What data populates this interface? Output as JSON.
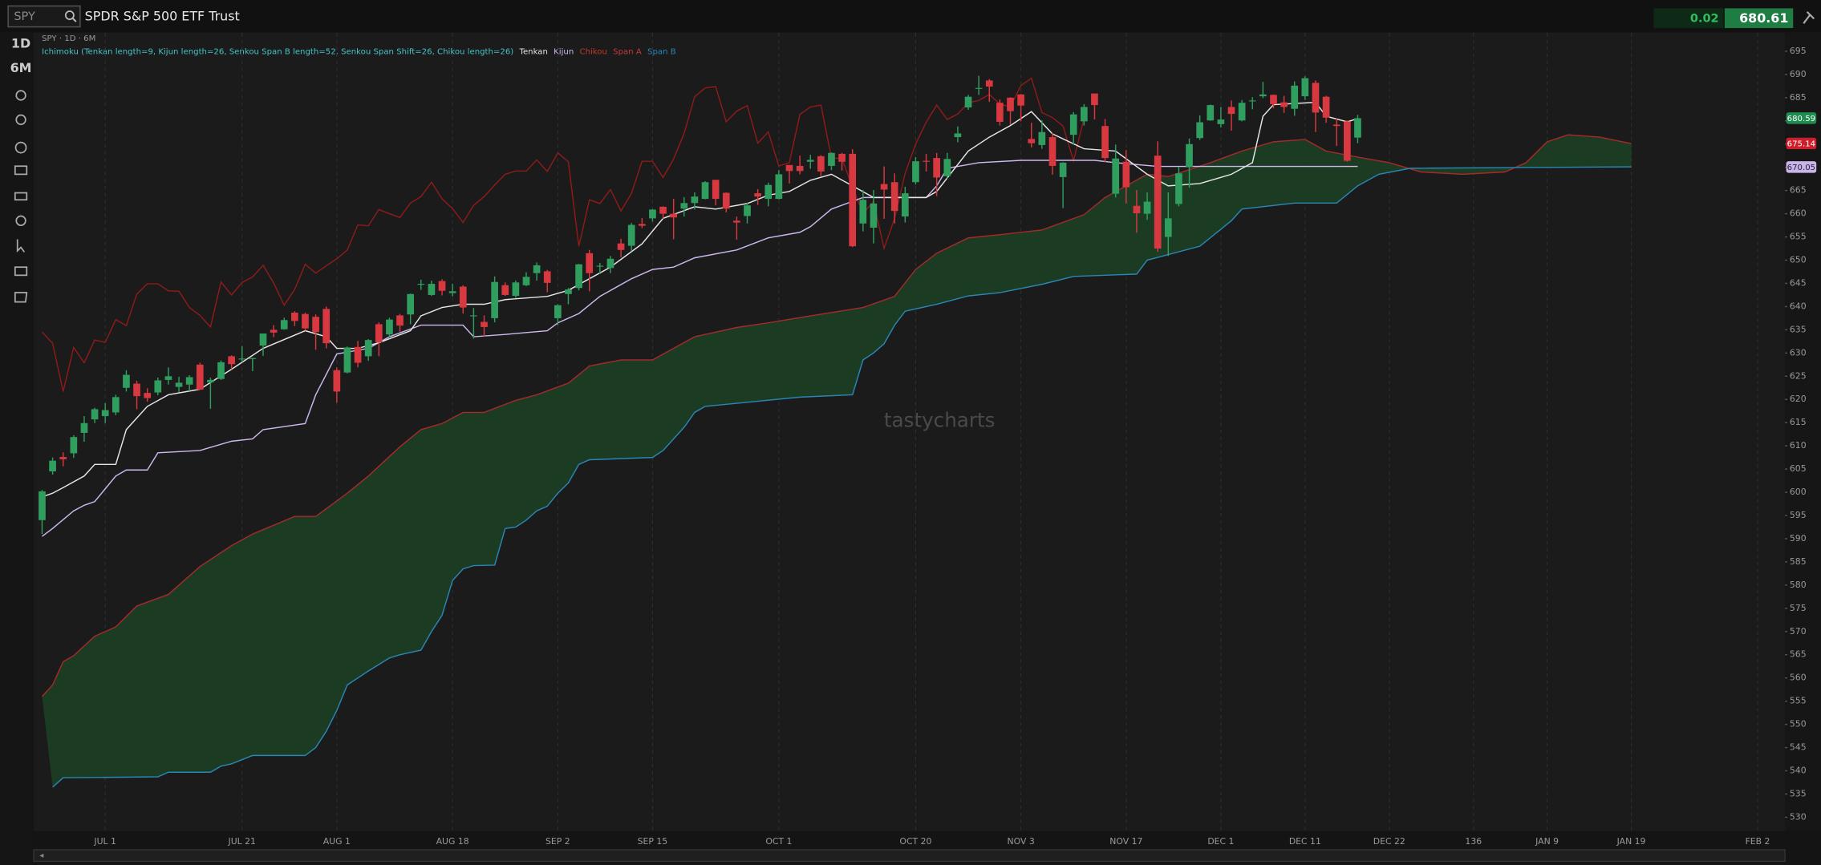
{
  "header": {
    "symbol": "SPY",
    "name": "SPDR S&P 500 ETF Trust",
    "change": 0.02,
    "last": 680.61
  },
  "toolbar": {
    "interval": "1D",
    "range": "6M"
  },
  "chart_data": {
    "type": "candlestick",
    "title": "SPY · 1D · 6M",
    "study": "Ichimoku (Tenkan length=9, Kijun length=26, Senkou Span B length=52, Senkou Span Shift=26, Chikou length=26)",
    "watermark": "tastycharts",
    "up_color": "#2f9e5f",
    "down_color": "#d8383f",
    "cloud_color": "#1b4224",
    "open": [
      594.0,
      604.5,
      607.6,
      608.4,
      612.8,
      615.7,
      616.4,
      617.2,
      622.5,
      623.4,
      621.4,
      621.5,
      624.2,
      622.7,
      623.2,
      627.5,
      623.7,
      624.4,
      629.3,
      628.8,
      628.7,
      631.6,
      635.0,
      635.1,
      638.7,
      638.4,
      637.8,
      639.5,
      626.3,
      625.8,
      631.3,
      629.3,
      636.2,
      634.0,
      638.1,
      638.3,
      644.7,
      642.5,
      645.5,
      642.9,
      644.3,
      637.9,
      636.7,
      637.5,
      644.6,
      642.3,
      644.6,
      647.2,
      647.6,
      637.5,
      642.7,
      644.0,
      651.5,
      648.6,
      648.3,
      653.6,
      653.1,
      657.8,
      659.0,
      661.5,
      660.0,
      661.1,
      662.3,
      663.2,
      667.3,
      664.5,
      658.5,
      659.5,
      664.4,
      663.2,
      663.2,
      670.5,
      670.3,
      671.2,
      672.4,
      670.3,
      672.9,
      672.9,
      657.9,
      657.0,
      666.4,
      666.8,
      659.4,
      666.8,
      671.4,
      672.0,
      668.1,
      676.5,
      682.9,
      687.0,
      688.7,
      683.9,
      685.0,
      685.7,
      676.1,
      674.8,
      676.5,
      667.9,
      677.0,
      679.9,
      685.9,
      678.9,
      664.3,
      671.2,
      661.7,
      660.0,
      672.5,
      655.0,
      662.1,
      670.0,
      676.3,
      680.1,
      679.3,
      683.0,
      680.1,
      684.4,
      685.3,
      685.6,
      684.0,
      682.6,
      685.3,
      688.2,
      685.2,
      679.2,
      679.9,
      676.4
    ],
    "high": [
      600.5,
      607.5,
      608.6,
      612.3,
      616.4,
      618.2,
      619.2,
      621.0,
      626.3,
      624.0,
      622.4,
      624.7,
      626.9,
      624.9,
      625.2,
      627.9,
      624.7,
      628.4,
      629.5,
      631.5,
      629.0,
      634.2,
      636.0,
      637.6,
      639.0,
      638.7,
      638.3,
      640.0,
      626.9,
      631.4,
      632.6,
      633.0,
      636.6,
      637.6,
      638.4,
      642.8,
      645.8,
      645.6,
      645.9,
      644.9,
      644.6,
      639.7,
      638.1,
      646.5,
      645.2,
      645.6,
      647.4,
      649.5,
      647.9,
      640.5,
      644.0,
      649.2,
      652.2,
      649.4,
      650.9,
      654.6,
      658.0,
      659.1,
      661.0,
      661.6,
      663.2,
      663.6,
      664.6,
      667.0,
      667.3,
      664.6,
      659.4,
      662.4,
      665.3,
      666.7,
      669.4,
      670.5,
      672.5,
      672.7,
      672.6,
      673.2,
      673.1,
      673.9,
      665.1,
      665.1,
      670.2,
      668.7,
      665.8,
      672.2,
      672.9,
      673.1,
      673.1,
      678.8,
      685.6,
      689.7,
      689.0,
      684.6,
      685.1,
      685.8,
      679.6,
      680.1,
      677.4,
      671.1,
      681.9,
      683.6,
      685.9,
      680.4,
      674.9,
      673.7,
      665.1,
      664.6,
      675.6,
      664.6,
      670.1,
      676.2,
      681.2,
      683.5,
      683.0,
      684.4,
      684.5,
      685.1,
      688.4,
      685.7,
      685.4,
      688.5,
      689.6,
      688.7,
      685.4,
      680.5,
      680.1,
      681.3
    ],
    "low": [
      591.0,
      603.8,
      605.6,
      607.4,
      610.9,
      614.9,
      614.9,
      616.6,
      621.7,
      617.9,
      619.5,
      620.9,
      623.2,
      621.5,
      621.8,
      622.0,
      618.0,
      624.2,
      626.5,
      628.0,
      626.1,
      629.4,
      633.4,
      635.0,
      635.8,
      634.8,
      630.7,
      631.0,
      619.3,
      625.6,
      626.9,
      628.3,
      629.3,
      633.4,
      634.6,
      636.2,
      643.6,
      642.3,
      642.4,
      642.2,
      638.5,
      633.1,
      633.6,
      636.6,
      642.3,
      641.9,
      644.4,
      645.6,
      643.1,
      636.0,
      640.5,
      643.5,
      643.3,
      647.0,
      647.2,
      650.6,
      651.9,
      656.9,
      658.3,
      658.9,
      654.5,
      659.4,
      660.9,
      663.1,
      661.8,
      660.3,
      654.4,
      657.9,
      661.9,
      661.6,
      663.1,
      666.5,
      668.5,
      669.7,
      668.1,
      669.4,
      669.3,
      652.8,
      656.2,
      653.6,
      658.9,
      657.9,
      658.1,
      666.3,
      669.1,
      663.8,
      667.6,
      675.4,
      682.4,
      685.6,
      684.1,
      679.0,
      679.2,
      679.9,
      674.3,
      674.0,
      668.4,
      661.2,
      674.8,
      679.0,
      680.3,
      671.1,
      663.5,
      662.2,
      655.9,
      658.7,
      651.8,
      650.9,
      661.6,
      665.6,
      675.9,
      680.0,
      678.6,
      677.9,
      679.9,
      682.5,
      684.9,
      682.7,
      681.7,
      681.1,
      684.5,
      677.6,
      679.6,
      674.6,
      671.2,
      675.2
    ],
    "close": [
      600.2,
      606.8,
      607.1,
      611.9,
      614.9,
      617.9,
      617.7,
      620.5,
      625.3,
      620.7,
      620.3,
      624.1,
      625.0,
      623.6,
      624.8,
      622.1,
      624.2,
      628.0,
      627.6,
      628.8,
      628.9,
      634.2,
      634.4,
      637.1,
      636.9,
      635.3,
      634.5,
      632.1,
      621.7,
      631.2,
      627.9,
      632.8,
      632.3,
      637.2,
      635.9,
      642.7,
      644.9,
      644.9,
      643.4,
      643.3,
      639.8,
      638.1,
      635.6,
      645.3,
      642.5,
      645.2,
      646.4,
      648.9,
      645.1,
      640.3,
      643.7,
      649.1,
      647.2,
      648.8,
      650.3,
      652.2,
      657.6,
      657.4,
      660.9,
      660.0,
      659.2,
      662.3,
      663.7,
      666.8,
      663.2,
      661.1,
      658.1,
      661.8,
      663.7,
      666.2,
      668.5,
      669.2,
      669.2,
      671.6,
      669.1,
      673.1,
      671.2,
      653.0,
      663.0,
      662.2,
      665.2,
      660.6,
      664.4,
      671.3,
      671.3,
      667.8,
      671.8,
      677.3,
      685.2,
      687.1,
      687.4,
      679.8,
      682.1,
      683.3,
      675.2,
      677.6,
      670.3,
      671.0,
      681.4,
      683.0,
      683.4,
      672.0,
      671.9,
      665.7,
      660.1,
      662.6,
      652.5,
      659.0,
      668.7,
      675.0,
      679.7,
      683.4,
      680.3,
      681.5,
      683.9,
      684.4,
      685.7,
      683.6,
      683.0,
      687.6,
      689.2,
      681.8,
      680.7,
      678.9,
      671.4,
      680.59
    ],
    "lines": [
      {
        "name": "Tenkan",
        "color": "#e6e6e6",
        "x": [
          0,
          1,
          2,
          4,
          5,
          7,
          8,
          10,
          12,
          15,
          18,
          21,
          25,
          27,
          28,
          30,
          32,
          35,
          36,
          38,
          40,
          42,
          44,
          48,
          50,
          52,
          54,
          57,
          59,
          62,
          64,
          67,
          69,
          71,
          73,
          75,
          77,
          79,
          84,
          85,
          88,
          90,
          92,
          94,
          96,
          99,
          102,
          105,
          107,
          110,
          113,
          115,
          116,
          117,
          121,
          122,
          124,
          125
        ],
        "values": [
          599,
          599.8,
          601,
          603.5,
          606,
          606,
          613.5,
          618.5,
          621,
          622.2,
          626.5,
          631,
          634.8,
          633.5,
          631,
          631,
          632.2,
          634.8,
          638,
          639.8,
          640.5,
          640.5,
          641.5,
          642.2,
          643.5,
          646,
          648.5,
          653.5,
          659,
          661.5,
          661,
          662.2,
          664,
          664.8,
          667.2,
          668.5,
          666,
          663.5,
          663.5,
          664.8,
          673.5,
          676.5,
          679,
          682,
          677.2,
          674,
          673.5,
          668.5,
          666,
          666.5,
          668.5,
          671,
          681,
          683.5,
          684,
          681,
          679.8,
          680.5
        ]
      },
      {
        "name": "Kijun",
        "color": "#cdb8ef",
        "x": [
          0,
          1,
          3,
          4,
          5,
          7,
          8,
          10,
          11,
          15,
          18,
          20,
          21,
          25,
          26,
          28,
          31,
          33,
          36,
          40,
          41,
          44,
          48,
          49,
          51,
          53,
          56,
          58,
          60,
          62,
          66,
          69,
          72,
          73,
          75,
          78,
          84,
          85,
          86,
          89,
          93,
          100,
          102,
          106,
          125
        ],
        "values": [
          590.5,
          592.2,
          596,
          597.2,
          598,
          603.5,
          604.8,
          604.8,
          608.5,
          609,
          611,
          611.5,
          613.5,
          614.8,
          621,
          629.8,
          631,
          633.5,
          636,
          636,
          633.5,
          634,
          634.8,
          636.5,
          638.5,
          642.2,
          646,
          648,
          648.5,
          650.5,
          652.2,
          654.8,
          656,
          657.2,
          661,
          663.5,
          663.5,
          666,
          669.8,
          671,
          671.5,
          671.5,
          671,
          670.2,
          670.2
        ]
      },
      {
        "name": "Chikou",
        "color": "#8e1b1b",
        "x": [
          0,
          1,
          2,
          3,
          4,
          5,
          6,
          7,
          8,
          9,
          10,
          11,
          12,
          13,
          14,
          15,
          16,
          17,
          18,
          19,
          20,
          21,
          22,
          23,
          24,
          25,
          26,
          27,
          28,
          29,
          30,
          31,
          32,
          33,
          34,
          35,
          36,
          37,
          38,
          39,
          40,
          41,
          42,
          43,
          44,
          45,
          46,
          47,
          48,
          49,
          50,
          51,
          52,
          53,
          54,
          55,
          56,
          57,
          58,
          59,
          60,
          61,
          62,
          63,
          64,
          65,
          66,
          67,
          68,
          69,
          70,
          71,
          72,
          73,
          74,
          75,
          76,
          77,
          78,
          79,
          80,
          81,
          82,
          83,
          84,
          85,
          86,
          87,
          88,
          89,
          90,
          91,
          92,
          93,
          94,
          95,
          96,
          97,
          98,
          99
        ],
        "values": [
          634.5,
          632.1,
          621.7,
          631.2,
          627.9,
          632.8,
          632.3,
          637.2,
          635.9,
          642.7,
          644.9,
          644.9,
          643.4,
          643.3,
          639.8,
          638.1,
          635.6,
          645.3,
          642.5,
          645.2,
          646.4,
          648.9,
          645.1,
          640.3,
          643.7,
          649.1,
          647.2,
          648.8,
          650.3,
          652.2,
          657.6,
          657.4,
          660.9,
          660.0,
          659.2,
          662.3,
          663.7,
          666.8,
          663.2,
          661.1,
          658.1,
          661.8,
          663.7,
          666.2,
          668.5,
          669.2,
          669.2,
          671.6,
          669.1,
          673.1,
          671.2,
          653.0,
          663.0,
          662.2,
          665.2,
          660.6,
          664.4,
          671.3,
          671.3,
          667.8,
          671.8,
          677.3,
          685.2,
          687.1,
          687.4,
          679.8,
          682.1,
          683.3,
          675.2,
          677.6,
          670.3,
          671.0,
          681.4,
          683.0,
          683.4,
          672.0,
          671.9,
          665.7,
          660.1,
          662.6,
          652.5,
          659.0,
          668.7,
          675.0,
          679.7,
          683.4,
          680.3,
          681.5,
          683.9,
          684.4,
          685.7,
          683.6,
          683.0,
          687.6,
          689.2,
          681.8,
          680.7,
          678.9,
          671.4,
          680.59
        ]
      },
      {
        "name": "Span A",
        "color": "#a52a2a",
        "x": [
          0,
          1,
          2,
          3,
          5,
          7,
          9,
          12,
          15,
          18,
          20,
          24,
          26,
          29,
          31,
          34,
          36,
          38,
          40,
          42,
          45,
          47,
          50,
          52,
          55,
          58,
          60,
          62,
          66,
          69,
          73,
          78,
          81,
          83,
          85,
          88,
          91,
          95,
          99,
          101,
          103,
          105,
          107,
          111,
          114,
          117,
          120,
          122,
          125,
          128,
          131,
          135,
          139,
          141,
          143,
          145,
          148,
          151
        ],
        "values": [
          556,
          558.5,
          563.5,
          564.8,
          569,
          571,
          575.5,
          578,
          584,
          588.5,
          591,
          594.8,
          594.8,
          599.8,
          603.5,
          609.8,
          613.5,
          614.8,
          617.2,
          617.2,
          619.8,
          621,
          623.5,
          627.2,
          628.5,
          628.5,
          631,
          633.5,
          635.5,
          636.5,
          638,
          639.8,
          642.2,
          648,
          651.5,
          654.8,
          655.5,
          656.5,
          659.8,
          663.5,
          666,
          668.5,
          668,
          671,
          673.5,
          675.5,
          676,
          673.5,
          672.2,
          671,
          669,
          668.5,
          669,
          671,
          675.5,
          677,
          676.5,
          675.1
        ]
      },
      {
        "name": "Span B",
        "color": "#2a86b5",
        "x": [
          1,
          2,
          11,
          12,
          16,
          17,
          18,
          20,
          25,
          26,
          27,
          28,
          29,
          30,
          31,
          33,
          34,
          36,
          37,
          38,
          39,
          40,
          41,
          43,
          44,
          45,
          46,
          47,
          48,
          49,
          50,
          51,
          52,
          58,
          59,
          60,
          61,
          62,
          63,
          72,
          77,
          78,
          79,
          80,
          81,
          82,
          85,
          88,
          91,
          95,
          98,
          104,
          105,
          110,
          113,
          114,
          119,
          123,
          125,
          127,
          130,
          151
        ],
        "values": [
          536.5,
          538.5,
          538.7,
          539.7,
          539.7,
          541,
          541.5,
          543.3,
          543.3,
          545,
          548.5,
          553,
          558.5,
          560,
          561.5,
          564.3,
          565,
          566,
          570,
          573.5,
          581,
          583.5,
          584.2,
          584.3,
          592.2,
          592.5,
          594,
          596,
          597,
          599.8,
          602,
          606,
          607,
          607.5,
          609,
          611.5,
          614,
          617.2,
          618.5,
          620.5,
          621,
          628.5,
          630,
          632,
          636,
          639,
          640.5,
          642.3,
          643,
          644.8,
          646.5,
          647,
          650,
          653,
          658.5,
          661,
          662.3,
          662.3,
          666,
          668.5,
          669.8,
          670.1
        ]
      }
    ],
    "xlim": [
      -0.8,
      165.6
    ],
    "xticks": [
      {
        "value": 6,
        "label": "JUL 1"
      },
      {
        "value": 19,
        "label": "JUL 21"
      },
      {
        "value": 28,
        "label": "AUG 1"
      },
      {
        "value": 39,
        "label": "AUG 18"
      },
      {
        "value": 49,
        "label": "SEP 2"
      },
      {
        "value": 58,
        "label": "SEP 15"
      },
      {
        "value": 70,
        "label": "OCT 1"
      },
      {
        "value": 83,
        "label": "OCT 20"
      },
      {
        "value": 93,
        "label": "NOV 3"
      },
      {
        "value": 103,
        "label": "NOV 17"
      },
      {
        "value": 112,
        "label": "DEC 1"
      },
      {
        "value": 120,
        "label": "DEC 11"
      },
      {
        "value": 128,
        "label": "DEC 22"
      },
      136,
      {
        "value": 143,
        "label": "JAN 9"
      },
      {
        "value": 151,
        "label": "JAN 19"
      },
      {
        "value": 163,
        "label": "FEB 2"
      }
    ],
    "ylim": [
      527,
      699
    ],
    "yticks": [
      530,
      535,
      540,
      545,
      550,
      555,
      560,
      565,
      570,
      575,
      580,
      585,
      590,
      595,
      600,
      605,
      610,
      615,
      620,
      625,
      630,
      635,
      640,
      645,
      650,
      655,
      660,
      665,
      670,
      675,
      680,
      685,
      690,
      695
    ],
    "grid": "x",
    "price_labels": [
      {
        "value": 680.59,
        "color": "#1e8c4e"
      },
      {
        "value": 675.14,
        "color": "#cc1f2b"
      },
      {
        "value": 670.05,
        "color": "#c9b6e8"
      }
    ]
  }
}
